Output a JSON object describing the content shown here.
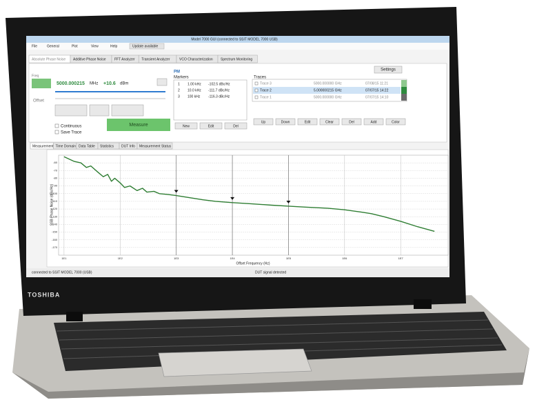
{
  "laptop": {
    "brand": "TOSHIBA"
  },
  "window": {
    "title": "Model 7000 GUI (connected to SSIT MODEL 7000 USB)",
    "menu": [
      "File",
      "General",
      "Plot",
      "View",
      "Help",
      "Update available"
    ],
    "tabs": [
      "Absolute Phase Noise",
      "Additive Phase Noise",
      "FFT Analyzer",
      "Transient Analyzer",
      "VCO Characterization",
      "Spectrum Monitoring"
    ]
  },
  "controls": {
    "freq_label": "Freq",
    "frequency": "5000.000215",
    "frequency_unit": "MHz",
    "power": "+10.6",
    "power_unit": "dBm",
    "offset_label": "Offset",
    "continuous": "Continuous",
    "save_trace": "Save Trace",
    "measure": "Measure"
  },
  "markers": {
    "section": "PM",
    "title": "Markers",
    "rows": [
      [
        "1",
        "1.00 kHz",
        "-102.5 dBc/Hz"
      ],
      [
        "2",
        "10.0 kHz",
        "-111.7 dBc/Hz"
      ],
      [
        "3",
        "100 kHz",
        "-116.3 dBc/Hz"
      ]
    ],
    "buttons": [
      "New",
      "Edit",
      "Del"
    ]
  },
  "traces": {
    "title": "Traces",
    "settings": "Settings",
    "rows": [
      [
        "Trace 3",
        "5000.000000 GHz",
        "07/08/15 11:21"
      ],
      [
        "Trace 2",
        "5.000000215 GHz",
        "07/07/15 14:22"
      ],
      [
        "Trace 1",
        "5000.000000 GHz",
        "07/07/15 14:10"
      ]
    ],
    "colors": [
      "#8fc98f",
      "#2e8b3e",
      "#6b6b6b"
    ],
    "buttons": [
      "Up",
      "Down",
      "Edit",
      "Clear",
      "Del",
      "Add",
      "Color"
    ]
  },
  "subtabs": [
    "Measurement",
    "Time Domain",
    "Data Table",
    "Statistics",
    "DUT Info",
    "Measurement Status"
  ],
  "plot": {
    "type": "line",
    "y_label": "SSB Phase Noise (dBc/Hz)",
    "x_label": "Offset Frequency (Hz)",
    "log_x": true,
    "grid": true,
    "color": "#2e7d32",
    "xlim": [
      8,
      70000000
    ],
    "xticks": [
      {
        "value": 10,
        "label": "1E1"
      },
      {
        "value": 100,
        "label": "1E2"
      },
      {
        "value": 1000,
        "label": "1E3"
      },
      {
        "value": 10000,
        "label": "1E4"
      },
      {
        "value": 100000,
        "label": "1E5"
      },
      {
        "value": 1000000,
        "label": "1E6"
      },
      {
        "value": 10000000,
        "label": "1E7"
      }
    ],
    "ylim": [
      -180,
      -50
    ],
    "yticks": [
      -60,
      -70,
      -80,
      -90,
      -100,
      -110,
      -120,
      -130,
      -140,
      -150,
      -160,
      -170
    ],
    "x": [
      10,
      15,
      20,
      25,
      30,
      40,
      50,
      60,
      70,
      80,
      100,
      120,
      150,
      200,
      250,
      300,
      400,
      500,
      700,
      1000,
      2000,
      3000,
      5000,
      10000,
      20000,
      50000,
      100000,
      200000,
      500000,
      1000000,
      2000000,
      3000000,
      5000000,
      10000000,
      20000000,
      40000000
    ],
    "values": [
      -52,
      -58,
      -60,
      -66,
      -64,
      -72,
      -78,
      -75,
      -84,
      -80,
      -86,
      -92,
      -90,
      -96,
      -93,
      -98,
      -97,
      -100,
      -101,
      -102.5,
      -106,
      -108,
      -110,
      -111.7,
      -113,
      -115,
      -116.3,
      -117.5,
      -119,
      -121,
      -124,
      -126,
      -130,
      -136,
      -143,
      -149
    ],
    "marker_x": [
      1000,
      10000,
      100000
    ]
  },
  "status": {
    "connection": "connected to SSIT MODEL 7000 (USB)",
    "signal": "DUT signal detected"
  }
}
